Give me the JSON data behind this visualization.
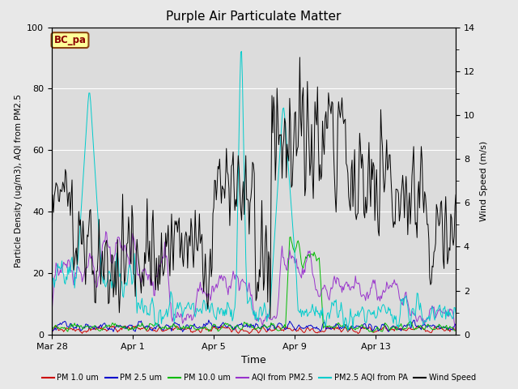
{
  "title": "Purple Air Particulate Matter",
  "ylabel_left": "Particle Density (ug/m3), AQI from PM2.5",
  "ylabel_right": "Wind Speed (m/s)",
  "xlabel": "Time",
  "ylim_left": [
    0,
    100
  ],
  "ylim_right": [
    0,
    14
  ],
  "fig_bg_color": "#e8e8e8",
  "plot_bg_color": "#dcdcdc",
  "annotation_text": "BC_pa",
  "annotation_bg": "#ffff99",
  "annotation_border": "#8B4513",
  "annotation_text_color": "#8B0000",
  "x_tick_labels": [
    "Mar 28",
    "Apr 1",
    "Apr 5",
    "Apr 9",
    "Apr 13"
  ],
  "x_tick_positions": [
    0,
    96,
    192,
    288,
    384
  ],
  "n_points": 480,
  "legend_entries": [
    {
      "label": "PM 1.0 um",
      "color": "#cc0000"
    },
    {
      "label": "PM 2.5 um",
      "color": "#0000cc"
    },
    {
      "label": "PM 10.0 um",
      "color": "#00bb00"
    },
    {
      "label": "AQI from PM2.5",
      "color": "#9933cc"
    },
    {
      "label": "PM2.5 AQI from PA",
      "color": "#00cccc"
    },
    {
      "label": "Wind Speed",
      "color": "#000000"
    }
  ]
}
